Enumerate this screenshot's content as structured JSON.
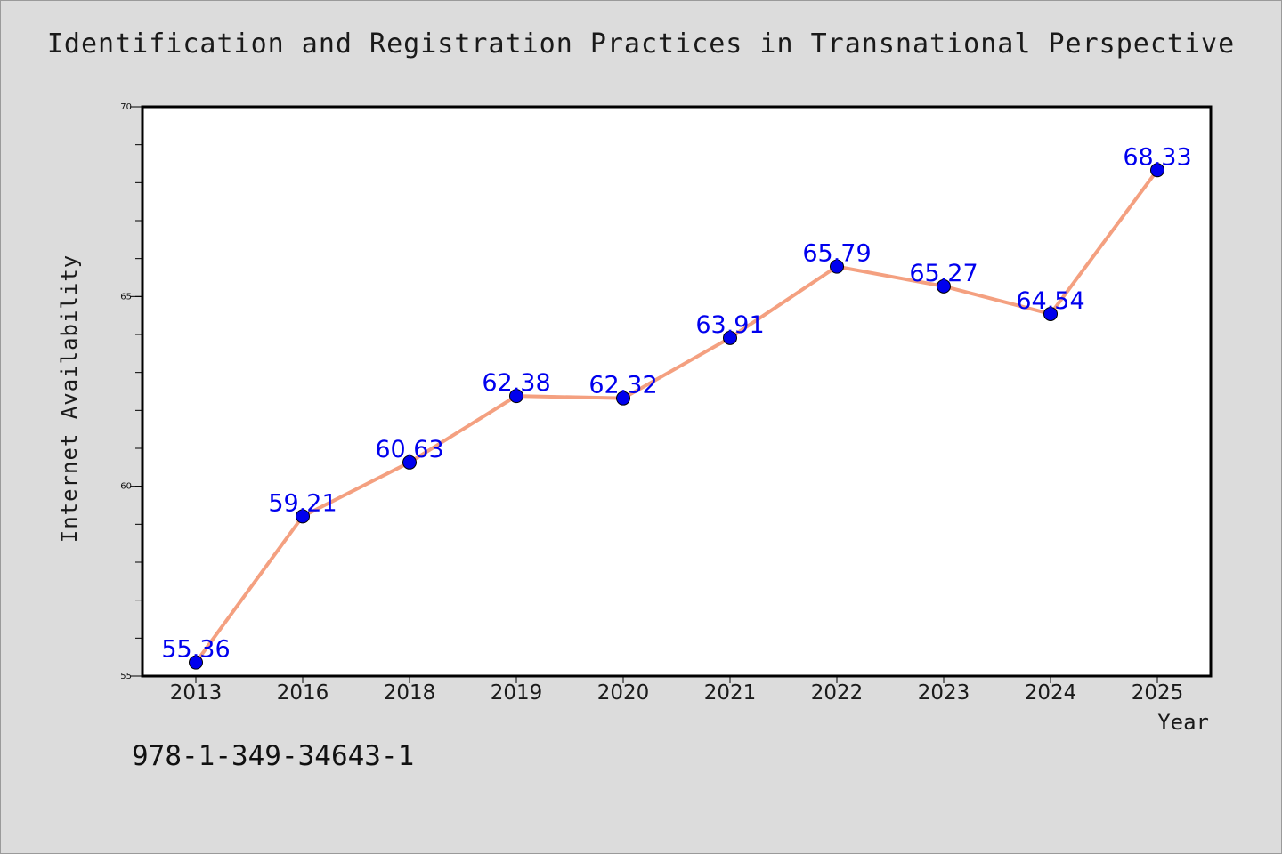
{
  "chart_data": {
    "type": "line",
    "title": "Identification and Registration Practices in Transnational Perspective",
    "xlabel": "Year",
    "ylabel": "Internet Availability",
    "categories": [
      "2013",
      "2016",
      "2018",
      "2019",
      "2020",
      "2021",
      "2022",
      "2023",
      "2024",
      "2025"
    ],
    "series": [
      {
        "values": [
          55.36,
          59.21,
          60.63,
          62.38,
          62.32,
          63.91,
          65.79,
          65.27,
          64.54,
          68.33
        ]
      }
    ],
    "data_labels": [
      "55.36",
      "59.21",
      "60.63",
      "62.38",
      "62.32",
      "63.91",
      "65.79",
      "65.27",
      "64.54",
      "68.33"
    ],
    "ylim": [
      55,
      70
    ],
    "yticks": [
      "55",
      "60",
      "65",
      "70"
    ],
    "y_minor_step": 1,
    "grid": false,
    "legend": "none",
    "colors": {
      "line": "#f4a080",
      "marker": "#0000ee",
      "data_label": "#0000ee",
      "background": "#dcdcdc",
      "plot_background": "#ffffff"
    }
  },
  "footer": {
    "isbn": "978-1-349-34643-1"
  }
}
